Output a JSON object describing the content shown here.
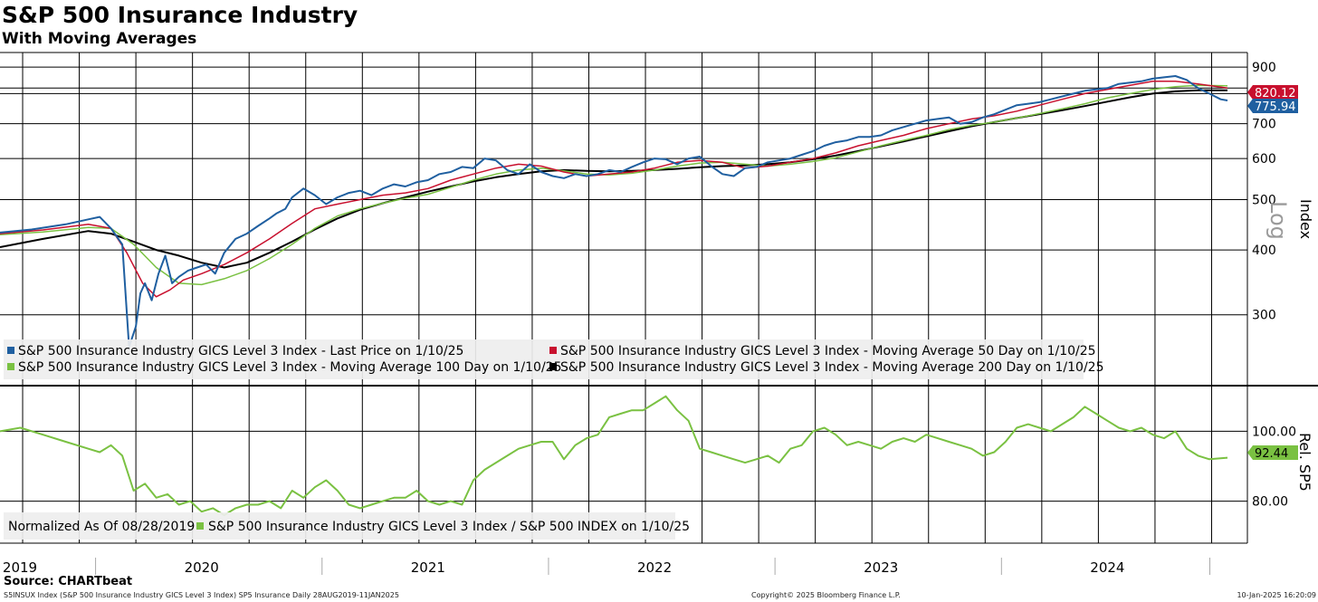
{
  "chart_data": [
    {
      "type": "line",
      "title": "S&P 500 Insurance Industry",
      "subtitle": "With Moving Averages",
      "ylabel": "Index",
      "scale_label": "Log",
      "yscale": "log",
      "ylim": [
        220,
        960
      ],
      "yticks": [
        300,
        400,
        500,
        600,
        700,
        800,
        900
      ],
      "x_range": [
        2019.61,
        2025.03
      ],
      "x_tick_labels": [
        "2019",
        "2020",
        "2021",
        "2022",
        "2023",
        "2024"
      ],
      "x_tick_positions": [
        2019.61,
        2020.5,
        2021.5,
        2022.5,
        2023.5,
        2024.5
      ],
      "series": [
        {
          "name": "S&P 500 Insurance Industry GICS Level 3 Index - Last Price on 1/10/25",
          "color": "#1f5fa0",
          "last_label": "775.94",
          "label_color": "#1f5fa0",
          "x": [
            2019.61,
            2019.75,
            2019.9,
            2020.0,
            2020.05,
            2020.1,
            2020.15,
            2020.18,
            2020.21,
            2020.23,
            2020.25,
            2020.28,
            2020.31,
            2020.34,
            2020.37,
            2020.4,
            2020.44,
            2020.48,
            2020.52,
            2020.56,
            2020.6,
            2020.65,
            2020.7,
            2020.75,
            2020.8,
            2020.83,
            2020.87,
            2020.9,
            2020.95,
            2021.0,
            2021.05,
            2021.1,
            2021.15,
            2021.2,
            2021.25,
            2021.3,
            2021.35,
            2021.4,
            2021.45,
            2021.5,
            2021.55,
            2021.6,
            2021.65,
            2021.7,
            2021.75,
            2021.8,
            2021.85,
            2021.9,
            2021.95,
            2022.0,
            2022.05,
            2022.1,
            2022.15,
            2022.2,
            2022.25,
            2022.3,
            2022.35,
            2022.4,
            2022.45,
            2022.5,
            2022.55,
            2022.6,
            2022.65,
            2022.7,
            2022.75,
            2022.8,
            2022.85,
            2022.9,
            2022.95,
            2023.0,
            2023.05,
            2023.1,
            2023.15,
            2023.2,
            2023.25,
            2023.3,
            2023.35,
            2023.4,
            2023.45,
            2023.5,
            2023.55,
            2023.6,
            2023.65,
            2023.7,
            2023.75,
            2023.8,
            2023.85,
            2023.9,
            2023.95,
            2024.0,
            2024.05,
            2024.1,
            2024.15,
            2024.2,
            2024.25,
            2024.3,
            2024.35,
            2024.4,
            2024.45,
            2024.5,
            2024.55,
            2024.6,
            2024.65,
            2024.7,
            2024.75,
            2024.8,
            2024.85,
            2024.9,
            2024.95,
            2025.0,
            2025.03
          ],
          "values": [
            432,
            438,
            448,
            458,
            463,
            440,
            410,
            260,
            285,
            330,
            345,
            320,
            360,
            390,
            345,
            355,
            365,
            370,
            375,
            360,
            395,
            420,
            430,
            445,
            460,
            470,
            480,
            505,
            525,
            510,
            490,
            505,
            515,
            520,
            510,
            525,
            535,
            530,
            540,
            545,
            560,
            565,
            578,
            575,
            600,
            595,
            570,
            560,
            585,
            565,
            555,
            550,
            560,
            555,
            560,
            570,
            565,
            578,
            590,
            600,
            598,
            585,
            600,
            605,
            580,
            560,
            555,
            575,
            578,
            590,
            595,
            600,
            610,
            620,
            635,
            645,
            650,
            660,
            660,
            665,
            680,
            690,
            700,
            710,
            715,
            720,
            700,
            705,
            720,
            730,
            745,
            760,
            765,
            770,
            780,
            790,
            800,
            810,
            815,
            820,
            835,
            840,
            845,
            855,
            860,
            865,
            850,
            820,
            800,
            780,
            776
          ]
        },
        {
          "name": "S&P 500 Insurance Industry GICS Level 3 Index - Moving Average 50 Day on 1/10/25",
          "color": "#c8102e",
          "last_label": "820.12",
          "label_color": "#c8102e",
          "x": [
            2019.61,
            2019.8,
            2020.0,
            2020.1,
            2020.17,
            2020.24,
            2020.3,
            2020.36,
            2020.42,
            2020.5,
            2020.6,
            2020.7,
            2020.8,
            2020.9,
            2021.0,
            2021.1,
            2021.2,
            2021.3,
            2021.4,
            2021.5,
            2021.6,
            2021.7,
            2021.8,
            2021.9,
            2022.0,
            2022.1,
            2022.2,
            2022.3,
            2022.4,
            2022.5,
            2022.6,
            2022.7,
            2022.8,
            2022.9,
            2023.0,
            2023.1,
            2023.2,
            2023.3,
            2023.4,
            2023.5,
            2023.6,
            2023.7,
            2023.8,
            2023.9,
            2024.0,
            2024.1,
            2024.2,
            2024.3,
            2024.4,
            2024.5,
            2024.6,
            2024.7,
            2024.8,
            2024.9,
            2025.03
          ],
          "values": [
            430,
            437,
            448,
            440,
            395,
            345,
            325,
            335,
            350,
            360,
            375,
            395,
            420,
            450,
            480,
            490,
            500,
            510,
            515,
            525,
            545,
            560,
            575,
            585,
            580,
            565,
            555,
            560,
            565,
            575,
            590,
            595,
            590,
            575,
            580,
            590,
            600,
            615,
            635,
            650,
            665,
            685,
            700,
            715,
            725,
            740,
            760,
            780,
            800,
            815,
            830,
            845,
            845,
            835,
            820
          ]
        },
        {
          "name": "S&P 500 Insurance Industry GICS Level 3 Index - Moving Average 100 Day on 1/10/25",
          "color": "#7ac142",
          "last_label": "",
          "label_color": "#7ac142",
          "x": [
            2019.61,
            2019.8,
            2020.0,
            2020.1,
            2020.2,
            2020.3,
            2020.4,
            2020.5,
            2020.6,
            2020.7,
            2020.8,
            2020.9,
            2021.0,
            2021.1,
            2021.2,
            2021.3,
            2021.4,
            2021.5,
            2021.6,
            2021.7,
            2021.8,
            2021.9,
            2022.0,
            2022.1,
            2022.2,
            2022.3,
            2022.4,
            2022.5,
            2022.6,
            2022.7,
            2022.8,
            2022.9,
            2023.0,
            2023.1,
            2023.2,
            2023.3,
            2023.4,
            2023.5,
            2023.6,
            2023.7,
            2023.8,
            2023.9,
            2024.0,
            2024.1,
            2024.2,
            2024.3,
            2024.4,
            2024.5,
            2024.6,
            2024.7,
            2024.8,
            2024.9,
            2025.03
          ],
          "values": [
            428,
            433,
            442,
            440,
            410,
            370,
            345,
            343,
            352,
            365,
            385,
            410,
            440,
            465,
            480,
            492,
            503,
            512,
            528,
            545,
            560,
            570,
            575,
            568,
            560,
            558,
            562,
            570,
            580,
            588,
            590,
            585,
            580,
            585,
            592,
            602,
            618,
            635,
            650,
            665,
            682,
            695,
            705,
            718,
            732,
            748,
            765,
            785,
            800,
            815,
            825,
            830,
            828
          ]
        },
        {
          "name": "S&P 500 Insurance Industry GICS Level 3 Index - Moving Average 200 Day on 1/10/25",
          "color": "#000000",
          "last_label": "",
          "label_color": "#000000",
          "x": [
            2019.61,
            2019.8,
            2020.0,
            2020.1,
            2020.2,
            2020.3,
            2020.4,
            2020.5,
            2020.6,
            2020.7,
            2020.8,
            2020.9,
            2021.0,
            2021.1,
            2021.2,
            2021.3,
            2021.4,
            2021.5,
            2021.6,
            2021.7,
            2021.8,
            2021.9,
            2022.0,
            2022.1,
            2022.2,
            2022.3,
            2022.4,
            2022.5,
            2022.6,
            2022.7,
            2022.8,
            2022.9,
            2023.0,
            2023.1,
            2023.2,
            2023.3,
            2023.4,
            2023.5,
            2023.6,
            2023.7,
            2023.8,
            2023.9,
            2024.0,
            2024.1,
            2024.2,
            2024.3,
            2024.4,
            2024.5,
            2024.6,
            2024.7,
            2024.8,
            2024.9,
            2025.03
          ],
          "values": [
            405,
            420,
            435,
            430,
            415,
            400,
            390,
            378,
            370,
            378,
            395,
            415,
            438,
            460,
            478,
            492,
            505,
            518,
            530,
            542,
            552,
            560,
            567,
            570,
            568,
            567,
            568,
            570,
            573,
            577,
            580,
            582,
            585,
            590,
            598,
            608,
            620,
            633,
            647,
            662,
            677,
            692,
            705,
            718,
            730,
            743,
            757,
            772,
            787,
            800,
            808,
            812,
            812
          ]
        }
      ],
      "legend": [
        "S&P 500 Insurance Industry GICS Level 3 Index - Last Price on 1/10/25",
        "S&P 500 Insurance Industry GICS Level 3 Index - Moving Average 50 Day on 1/10/25",
        "S&P 500 Insurance Industry GICS Level 3 Index - Moving Average 100 Day on 1/10/25",
        "S&P 500 Insurance Industry GICS Level 3 Index - Moving Average 200 Day on 1/10/25"
      ]
    },
    {
      "type": "line",
      "ylabel": "Rel. SP5",
      "ylim": [
        68,
        112
      ],
      "yticks": [
        80,
        100
      ],
      "ytick_labels": [
        "80.00",
        "100.00"
      ],
      "x_range": [
        2019.61,
        2025.03
      ],
      "series": [
        {
          "name": "S&P 500 Insurance Industry GICS Level 3 Index / S&P 500 INDEX on 1/10/25",
          "color": "#7ac142",
          "last_label": "92.44",
          "x": [
            2019.61,
            2019.7,
            2019.8,
            2019.9,
            2020.0,
            2020.05,
            2020.1,
            2020.15,
            2020.2,
            2020.25,
            2020.3,
            2020.35,
            2020.4,
            2020.45,
            2020.5,
            2020.55,
            2020.6,
            2020.65,
            2020.7,
            2020.75,
            2020.8,
            2020.85,
            2020.9,
            2020.95,
            2021.0,
            2021.05,
            2021.1,
            2021.15,
            2021.2,
            2021.25,
            2021.3,
            2021.35,
            2021.4,
            2021.45,
            2021.5,
            2021.55,
            2021.6,
            2021.65,
            2021.7,
            2021.75,
            2021.8,
            2021.85,
            2021.9,
            2021.95,
            2022.0,
            2022.05,
            2022.1,
            2022.15,
            2022.2,
            2022.25,
            2022.3,
            2022.35,
            2022.4,
            2022.45,
            2022.5,
            2022.55,
            2022.6,
            2022.65,
            2022.7,
            2022.75,
            2022.8,
            2022.85,
            2022.9,
            2022.95,
            2023.0,
            2023.05,
            2023.1,
            2023.15,
            2023.2,
            2023.25,
            2023.3,
            2023.35,
            2023.4,
            2023.45,
            2023.5,
            2023.55,
            2023.6,
            2023.65,
            2023.7,
            2023.75,
            2023.8,
            2023.85,
            2023.9,
            2023.95,
            2024.0,
            2024.05,
            2024.1,
            2024.15,
            2024.2,
            2024.25,
            2024.3,
            2024.35,
            2024.4,
            2024.45,
            2024.5,
            2024.55,
            2024.6,
            2024.65,
            2024.7,
            2024.75,
            2024.8,
            2024.85,
            2024.9,
            2024.95,
            2025.03
          ],
          "values": [
            100,
            101,
            99,
            97,
            95,
            94,
            96,
            93,
            83,
            85,
            81,
            82,
            79,
            80,
            77,
            78,
            76,
            78,
            79,
            79,
            80,
            78,
            83,
            81,
            84,
            86,
            83,
            79,
            78,
            79,
            80,
            81,
            81,
            83,
            80,
            79,
            80,
            79,
            86,
            89,
            91,
            93,
            95,
            96,
            97,
            97,
            92,
            96,
            98,
            99,
            104,
            105,
            106,
            106,
            108,
            110,
            106,
            103,
            95,
            94,
            93,
            92,
            91,
            92,
            93,
            91,
            95,
            96,
            100,
            101,
            99,
            96,
            97,
            96,
            95,
            97,
            98,
            97,
            99,
            98,
            97,
            96,
            95,
            93,
            94,
            97,
            101,
            102,
            101,
            100,
            102,
            104,
            107,
            105,
            103,
            101,
            100,
            101,
            99,
            98,
            100,
            95,
            93,
            92,
            92.44
          ]
        }
      ],
      "legend": [
        "Normalized As Of 08/28/2019",
        "S&P 500 Insurance Industry GICS Level 3 Index / S&P 500 INDEX on 1/10/25"
      ]
    }
  ],
  "footer": {
    "source": "Source: CHARTbeat",
    "left": "S5INSUX Index (S&P 500 Insurance Industry GICS Level 3 Index) SP5 Insurance  Daily 28AUG2019-11JAN2025",
    "middle": "Copyright© 2025 Bloomberg Finance L.P.",
    "right": "10-Jan-2025 16:20:09"
  },
  "colors": {
    "price": "#1f5fa0",
    "ma50": "#c8102e",
    "ma100": "#7ac142",
    "ma200": "#000000",
    "relative": "#7ac142",
    "grid": "#000000",
    "legend_bg": "#eeeeee"
  }
}
